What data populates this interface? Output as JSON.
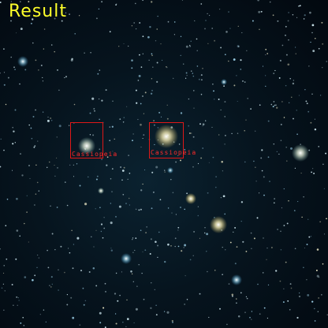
{
  "title": "Result",
  "detections": [
    {
      "label": "Cassiopeia"
    },
    {
      "label": "Cassiopeia"
    }
  ],
  "colors": {
    "title": "#ffff2a",
    "box": "#e01818",
    "label": "#ff2a2a"
  }
}
